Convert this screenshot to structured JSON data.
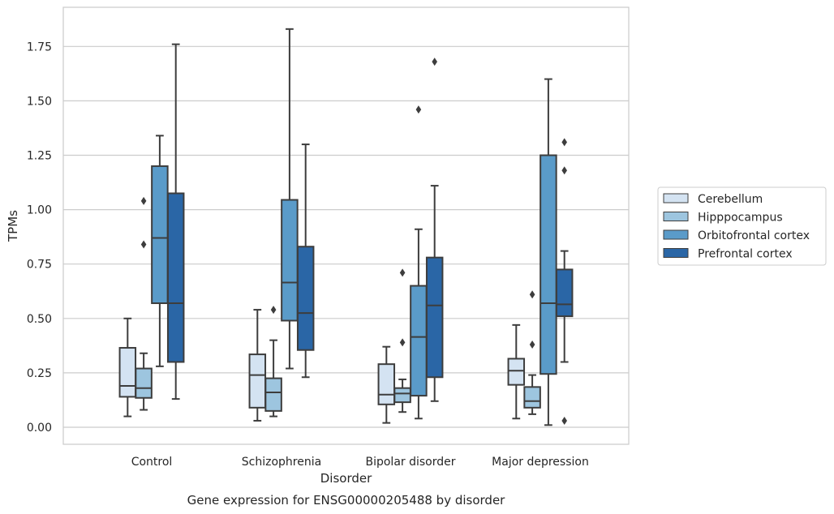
{
  "caption": "Gene expression for ENSG00000205488 by disorder",
  "chart_data": {
    "type": "box",
    "xlabel": "Disorder",
    "ylabel": "TPMs",
    "ylim": [
      -0.08,
      1.92
    ],
    "yticks": [
      0.0,
      0.25,
      0.5,
      0.75,
      1.0,
      1.25,
      1.5,
      1.75
    ],
    "ytick_labels": [
      "0.00",
      "0.25",
      "0.50",
      "0.75",
      "1.00",
      "1.25",
      "1.50",
      "1.75"
    ],
    "grid": "horizontal",
    "legend_position": "right",
    "categories": [
      "Control",
      "Schizophrenia",
      "Bipolar disorder",
      "Major depression"
    ],
    "series": [
      {
        "name": "Cerebellum",
        "color": "#d4e3f2",
        "boxes": [
          {
            "whislo": 0.05,
            "q1": 0.14,
            "med": 0.19,
            "q3": 0.365,
            "whishi": 0.5,
            "fliers": []
          },
          {
            "whislo": 0.03,
            "q1": 0.09,
            "med": 0.24,
            "q3": 0.335,
            "whishi": 0.54,
            "fliers": []
          },
          {
            "whislo": 0.02,
            "q1": 0.105,
            "med": 0.15,
            "q3": 0.29,
            "whishi": 0.37,
            "fliers": []
          },
          {
            "whislo": 0.04,
            "q1": 0.195,
            "med": 0.26,
            "q3": 0.315,
            "whishi": 0.47,
            "fliers": []
          }
        ]
      },
      {
        "name": "Hipppocampus",
        "color": "#9dc5df",
        "boxes": [
          {
            "whislo": 0.08,
            "q1": 0.135,
            "med": 0.18,
            "q3": 0.27,
            "whishi": 0.34,
            "fliers": [
              0.84,
              1.04
            ]
          },
          {
            "whislo": 0.05,
            "q1": 0.075,
            "med": 0.16,
            "q3": 0.225,
            "whishi": 0.4,
            "fliers": [
              0.54
            ]
          },
          {
            "whislo": 0.07,
            "q1": 0.115,
            "med": 0.155,
            "q3": 0.18,
            "whishi": 0.22,
            "fliers": [
              0.39,
              0.71
            ]
          },
          {
            "whislo": 0.06,
            "q1": 0.09,
            "med": 0.12,
            "q3": 0.185,
            "whishi": 0.24,
            "fliers": [
              0.38,
              0.61
            ]
          }
        ]
      },
      {
        "name": "Orbitofrontal cortex",
        "color": "#5a9bc9",
        "boxes": [
          {
            "whislo": 0.28,
            "q1": 0.57,
            "med": 0.87,
            "q3": 1.2,
            "whishi": 1.34,
            "fliers": []
          },
          {
            "whislo": 0.27,
            "q1": 0.49,
            "med": 0.665,
            "q3": 1.045,
            "whishi": 1.83,
            "fliers": []
          },
          {
            "whislo": 0.04,
            "q1": 0.145,
            "med": 0.415,
            "q3": 0.65,
            "whishi": 0.91,
            "fliers": [
              1.46
            ]
          },
          {
            "whislo": 0.01,
            "q1": 0.245,
            "med": 0.57,
            "q3": 1.25,
            "whishi": 1.6,
            "fliers": []
          }
        ]
      },
      {
        "name": "Prefrontal cortex",
        "color": "#2a66a6",
        "boxes": [
          {
            "whislo": 0.13,
            "q1": 0.3,
            "med": 0.57,
            "q3": 1.075,
            "whishi": 1.76,
            "fliers": []
          },
          {
            "whislo": 0.23,
            "q1": 0.355,
            "med": 0.525,
            "q3": 0.83,
            "whishi": 1.3,
            "fliers": []
          },
          {
            "whislo": 0.12,
            "q1": 0.23,
            "med": 0.56,
            "q3": 0.78,
            "whishi": 1.11,
            "fliers": [
              1.68
            ]
          },
          {
            "whislo": 0.3,
            "q1": 0.51,
            "med": 0.565,
            "q3": 0.725,
            "whishi": 0.81,
            "fliers": [
              0.03,
              1.18,
              1.31
            ]
          }
        ]
      }
    ]
  }
}
